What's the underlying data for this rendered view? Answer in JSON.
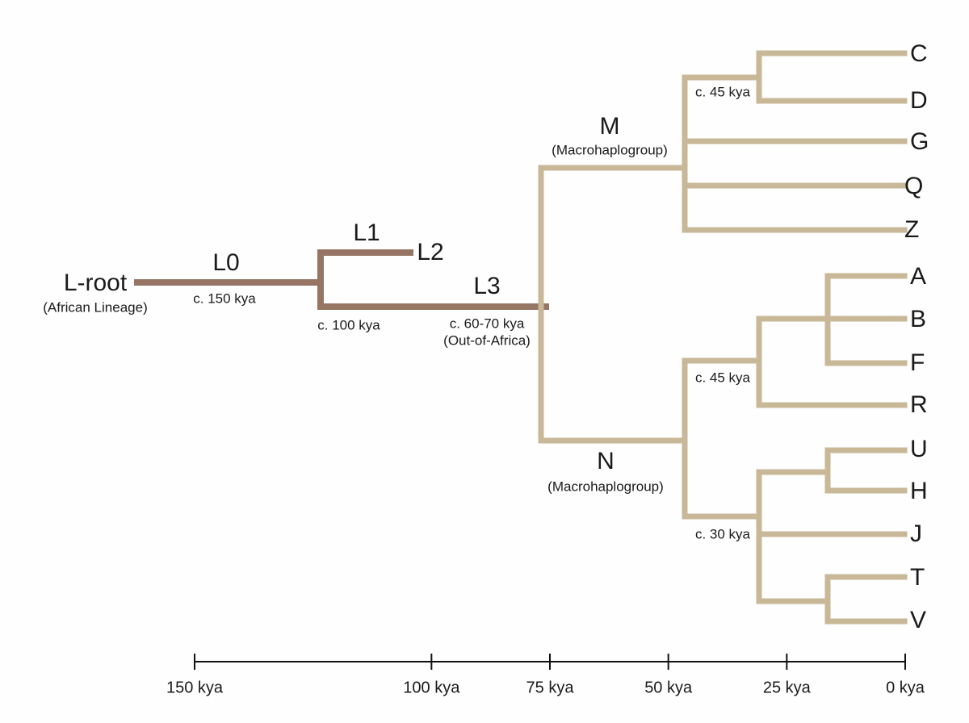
{
  "root": {
    "label": "L-root",
    "sublabel": "(African Lineage)"
  },
  "branches": [
    {
      "label": "L0",
      "date": "c. 150 kya"
    },
    {
      "label": "L1"
    },
    {
      "label": "L2"
    },
    {
      "label": "L3",
      "date": "c. 60-70 kya",
      "note": "(Out-of-Africa)"
    },
    {
      "label": "M",
      "sublabel": "(Macrohaplogroup)"
    },
    {
      "label": "N",
      "sublabel": "(Macrohaplogroup)"
    }
  ],
  "node_dates": [
    "c. 100 kya",
    "c. 45 kya",
    "c. 45 kya",
    "c. 30 kya"
  ],
  "leaves": [
    "C",
    "D",
    "G",
    "Q",
    "Z",
    "A",
    "B",
    "F",
    "R",
    "U",
    "H",
    "J",
    "T",
    "V"
  ],
  "axis": {
    "ticks": [
      {
        "value": 150,
        "label": "150 kya"
      },
      {
        "value": 100,
        "label": "100 kya"
      },
      {
        "value": 75,
        "label": "75 kya"
      },
      {
        "value": 50,
        "label": "50 kya"
      },
      {
        "value": 25,
        "label": "25 kya"
      },
      {
        "value": 0,
        "label": "0 kya"
      }
    ]
  }
}
